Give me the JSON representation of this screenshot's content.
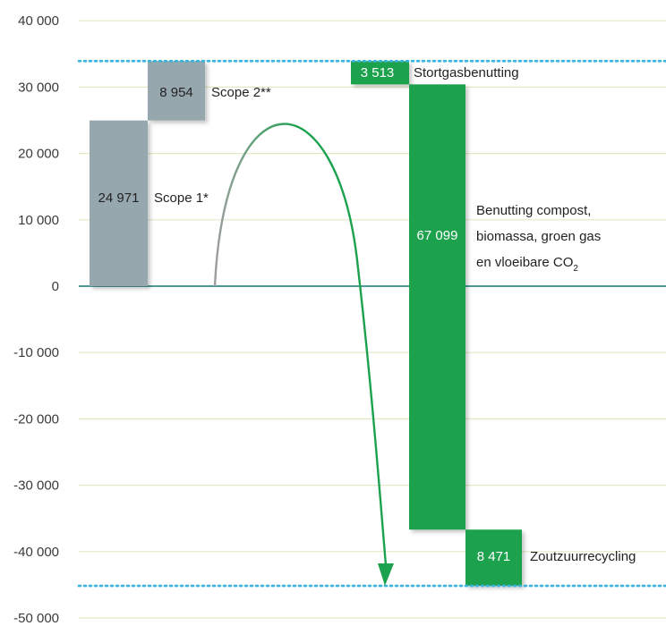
{
  "chart_data": {
    "type": "bar",
    "subtype": "waterfall",
    "y_axis": {
      "ticks": [
        40000,
        30000,
        20000,
        10000,
        0,
        -10000,
        -20000,
        -30000,
        -40000,
        -50000
      ],
      "tick_labels": [
        "40 000",
        "30 000",
        "20 000",
        "10 000",
        "0",
        "-10 000",
        "-20 000",
        "-30 000",
        "-40 000",
        "-50 000"
      ],
      "ylim": [
        -50000,
        40000
      ],
      "grid": true
    },
    "xlabel": "",
    "ylabel": "",
    "emissions": [
      {
        "label": "Scope 1*",
        "value": 24971,
        "value_label": "24 971",
        "start": 0,
        "end": 24971
      },
      {
        "label": "Scope 2**",
        "value": 8954,
        "value_label": "8 954",
        "start": 24971,
        "end": 33925
      }
    ],
    "avoided": [
      {
        "label": "Stortgasbenutting",
        "value": 3513,
        "value_label": "3 513",
        "start": 33925,
        "end": 30412
      },
      {
        "label_lines": [
          "Benutting compost,",
          "biomassa, groen gas",
          "en vloeibare CO"
        ],
        "label_subscript": "2",
        "value": 67099,
        "value_label": "67 099",
        "start": 30412,
        "end": -36687
      },
      {
        "label": "Zoutzuurrecycling",
        "value": 8471,
        "value_label": "8 471",
        "start": -36687,
        "end": -45158
      }
    ],
    "reference_lines": [
      33925,
      -45158
    ],
    "colors": {
      "emission_bar": "#96a8ae",
      "avoided_bar": "#1ca24e",
      "axis_zero": "#4a9a9a",
      "gridline": "#e4e8c6",
      "dotted_line": "#38b3dc",
      "arc_start": "#9e9e9e",
      "arc_end": "#1ca24e"
    }
  }
}
